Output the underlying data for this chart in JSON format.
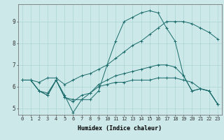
{
  "xlabel": "Humidex (Indice chaleur)",
  "bg_color": "#cce8e8",
  "grid_color": "#aad4d4",
  "line_color": "#1a6b6b",
  "xlim": [
    -0.5,
    23.5
  ],
  "ylim": [
    4.7,
    9.8
  ],
  "xticks": [
    0,
    1,
    2,
    3,
    4,
    5,
    6,
    7,
    8,
    9,
    10,
    11,
    12,
    13,
    14,
    15,
    16,
    17,
    18,
    19,
    20,
    21,
    22,
    23
  ],
  "yticks": [
    5,
    6,
    7,
    8,
    9
  ],
  "series": [
    [
      6.3,
      6.3,
      6.2,
      6.4,
      6.4,
      6.1,
      6.3,
      6.5,
      6.6,
      6.8,
      7.0,
      7.3,
      7.6,
      7.9,
      8.1,
      8.4,
      8.7,
      9.0,
      9.0,
      9.0,
      8.9,
      8.7,
      8.5,
      8.2
    ],
    [
      6.3,
      6.3,
      5.8,
      5.7,
      6.3,
      5.6,
      4.8,
      5.4,
      5.4,
      5.8,
      7.0,
      8.1,
      9.0,
      9.2,
      9.4,
      9.5,
      9.4,
      8.7,
      8.1,
      6.5,
      5.8,
      5.9,
      5.8,
      5.2
    ],
    [
      6.3,
      6.3,
      5.8,
      5.6,
      6.3,
      5.5,
      5.4,
      5.4,
      5.7,
      6.1,
      6.3,
      6.5,
      6.6,
      6.7,
      6.8,
      6.9,
      7.0,
      7.0,
      6.9,
      6.5,
      5.8,
      5.9,
      5.8,
      5.2
    ],
    [
      6.3,
      6.3,
      5.8,
      5.6,
      6.3,
      5.5,
      5.3,
      5.6,
      5.7,
      6.0,
      6.1,
      6.2,
      6.2,
      6.3,
      6.3,
      6.3,
      6.4,
      6.4,
      6.4,
      6.3,
      6.2,
      5.9,
      5.8,
      5.2
    ]
  ],
  "xlabel_fontsize": 6.0,
  "tick_fontsize": 5.0
}
